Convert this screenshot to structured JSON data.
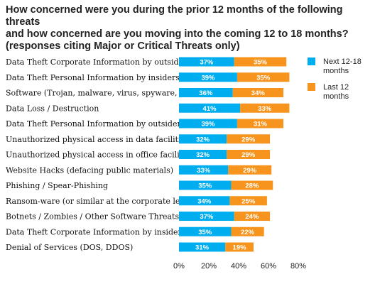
{
  "chart_data": {
    "type": "bar",
    "orientation": "horizontal",
    "stacked": true,
    "title_lines": [
      "How concerned were you during the prior 12 months of the following threats",
      "and how concerned are you moving into the coming 12 to 18 months?",
      "(responses citing Major or Critical Threats only)"
    ],
    "categories": [
      "Data Theft Corporate Information by outsiders",
      "Data Theft Personal Information by insiders",
      "Software (Trojan, malware, virus, spyware, etc)",
      "Data Loss / Destruction",
      "Data Theft Personal Information by outsiders",
      "Unauthorized physical access in data facilities",
      "Unauthorized physical access in office facilities",
      "Website Hacks (defacing public materials)",
      "Phishing / Spear-Phishing",
      "Ransom-ware (or similar at the corporate level)",
      "Botnets / Zombies / Other Software Threats",
      "Data Theft Corporate Information by insiders",
      "Denial of Services (DOS, DDOS)"
    ],
    "series": [
      {
        "name_lines": [
          "Next 12-18",
          "months"
        ],
        "color": "#00AEEF",
        "values": [
          37,
          39,
          36,
          41,
          39,
          32,
          32,
          33,
          35,
          34,
          37,
          35,
          31
        ],
        "labels": [
          "37%",
          "39%",
          "36%",
          "41%",
          "39%",
          "32%",
          "32%",
          "33%",
          "35%",
          "34%",
          "37%",
          "35%",
          "31%"
        ]
      },
      {
        "name_lines": [
          "Last 12",
          "months"
        ],
        "color": "#F7941D",
        "values": [
          35,
          35,
          34,
          33,
          31,
          29,
          29,
          29,
          28,
          25,
          24,
          22,
          19
        ],
        "labels": [
          "35%",
          "35%",
          "34%",
          "33%",
          "31%",
          "29%",
          "29%",
          "29%",
          "28%",
          "25%",
          "24%",
          "22%",
          "19%"
        ]
      }
    ],
    "xlim": [
      0,
      80
    ],
    "x_ticks": [
      0,
      20,
      40,
      60,
      80
    ],
    "x_tick_labels": [
      "0%",
      "20%",
      "40%",
      "60%",
      "80%"
    ],
    "grid": false,
    "legend_position": "right"
  }
}
